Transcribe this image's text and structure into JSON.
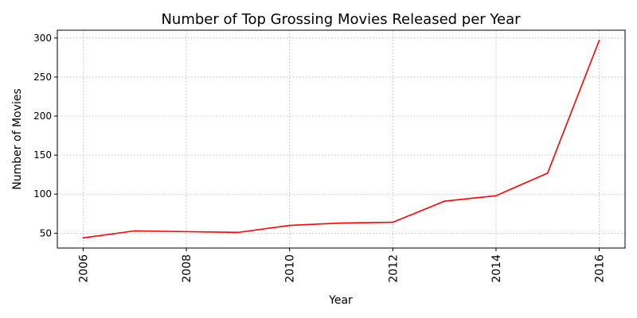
{
  "chart_data": {
    "type": "line",
    "title": "Number of Top Grossing Movies Released per Year",
    "xlabel": "Year",
    "ylabel": "Number of Movies",
    "x": [
      2006,
      2007,
      2008,
      2009,
      2010,
      2011,
      2012,
      2013,
      2014,
      2015,
      2016
    ],
    "series": [
      {
        "values": [
          44,
          53,
          52,
          51,
          60,
          63,
          64,
          91,
          98,
          127,
          297
        ],
        "color": "#ff0000"
      }
    ],
    "xlim": [
      2005.5,
      2016.5
    ],
    "ylim": [
      31,
      310
    ],
    "xticks": [
      2006,
      2008,
      2010,
      2012,
      2014,
      2016
    ],
    "yticks": [
      50,
      100,
      150,
      200,
      250,
      300
    ],
    "xtick_rotation": "vertical",
    "grid": true,
    "grid_style": "dotted"
  }
}
